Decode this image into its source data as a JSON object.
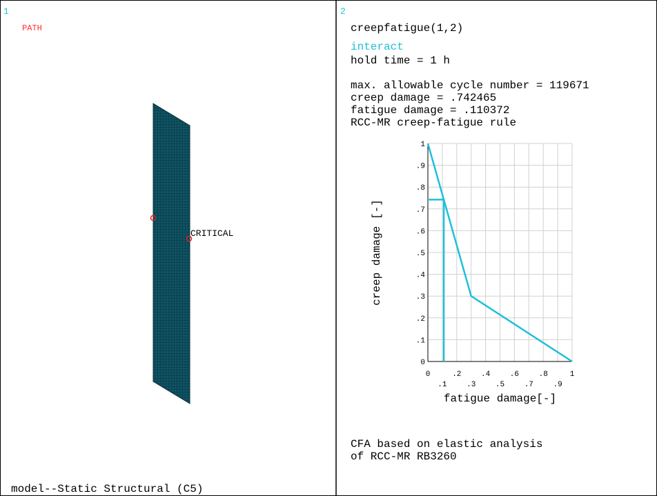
{
  "panels": [
    {
      "number": "1",
      "label": "PATH",
      "annotation": "CRITICAL",
      "footer": "model--Static Structural (C5)"
    },
    {
      "number": "2",
      "command": "creepfatigue(1,2)",
      "mode": "interact",
      "lines": [
        "hold time = 1 h",
        "max. allowable cycle number = 119671",
        "creep damage = .742465",
        "fatigue damage = .110372",
        "RCC-MR creep-fatigue rule"
      ],
      "footer_lines": [
        "CFA based on elastic analysis",
        "of RCC-MR RB3260"
      ]
    }
  ],
  "chart_data": {
    "type": "line",
    "xlabel": "fatigue damage[-]",
    "ylabel": "creep damage [-]",
    "xlim": [
      0,
      1
    ],
    "ylim": [
      0,
      1
    ],
    "xticks": [
      0,
      {
        "value": 0.1,
        "label": ".1"
      },
      {
        "value": 0.2,
        "label": ".2"
      },
      {
        "value": 0.3,
        "label": ".3"
      },
      {
        "value": 0.4,
        "label": ".4"
      },
      {
        "value": 0.5,
        "label": ".5"
      },
      {
        "value": 0.6,
        "label": ".6"
      },
      {
        "value": 0.7,
        "label": ".7"
      },
      {
        "value": 0.8,
        "label": ".8"
      },
      {
        "value": 0.9,
        "label": ".9"
      },
      1
    ],
    "yticks": [
      0,
      {
        "value": 0.1,
        "label": ".1"
      },
      {
        "value": 0.2,
        "label": ".2"
      },
      {
        "value": 0.3,
        "label": ".3"
      },
      {
        "value": 0.4,
        "label": ".4"
      },
      {
        "value": 0.5,
        "label": ".5"
      },
      {
        "value": 0.6,
        "label": ".6"
      },
      {
        "value": 0.7,
        "label": ".7"
      },
      {
        "value": 0.8,
        "label": ".8"
      },
      {
        "value": 0.9,
        "label": ".9"
      },
      1
    ],
    "grid": true,
    "series": [
      {
        "color": "#1ec0d8",
        "x": [
          0,
          0.3,
          1
        ],
        "values": [
          1,
          0.3,
          0
        ]
      },
      {
        "color": "#1ec0d8",
        "x": [
          0,
          0.110372,
          0.110372
        ],
        "values": [
          0.742465,
          0.742465,
          0
        ]
      }
    ]
  }
}
